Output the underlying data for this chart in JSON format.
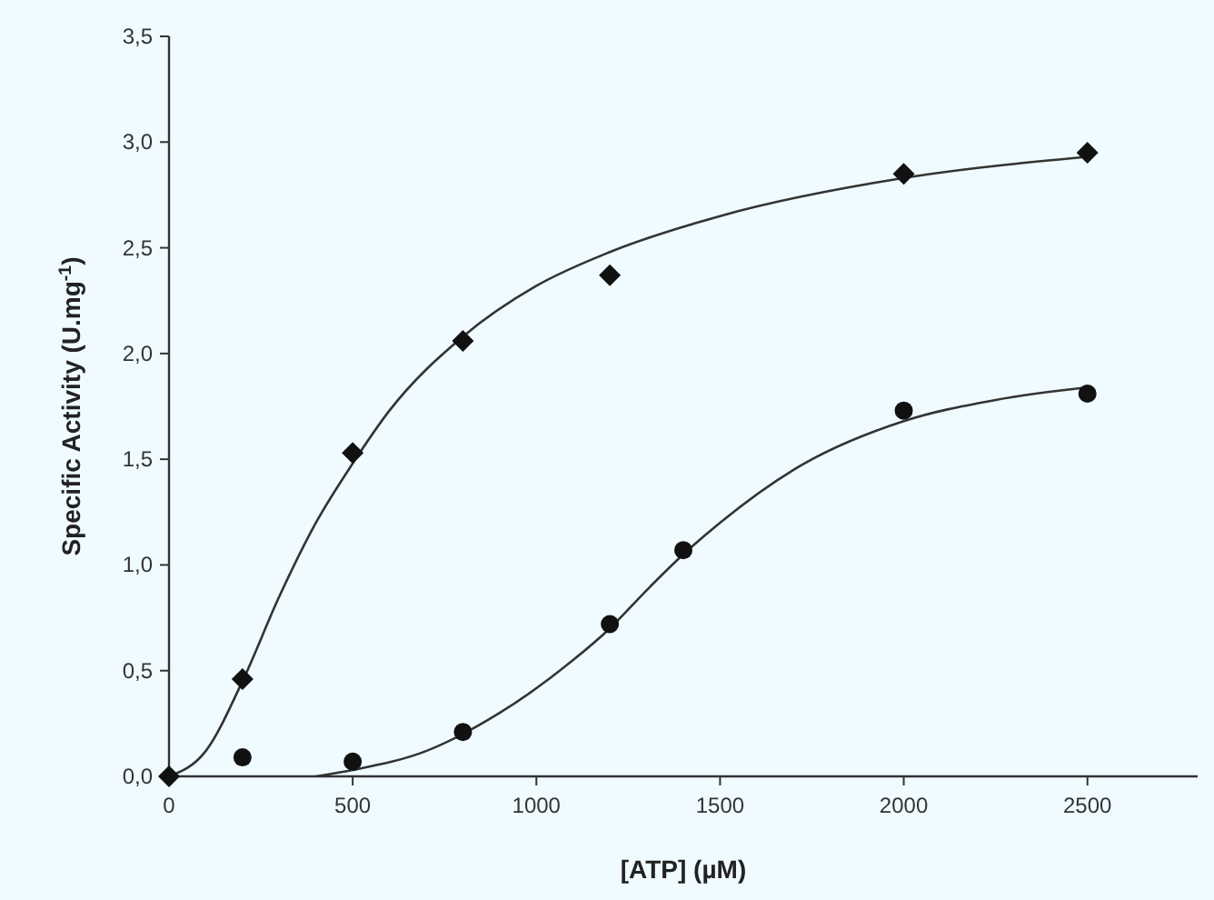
{
  "chart_data": {
    "type": "scatter",
    "xlabel": "[ATP] (µM)",
    "ylabel": "Specific Activity (U.mg$^{-1}$)",
    "xlim": [
      0,
      2800
    ],
    "xticks": [
      0,
      500,
      1000,
      1500,
      2000,
      2500
    ],
    "ylim": [
      0,
      3.5
    ],
    "yticks": [
      {
        "value": 0,
        "label": "0,0"
      },
      {
        "value": 0.5,
        "label": "0,5"
      },
      {
        "value": 1,
        "label": "1,0"
      },
      {
        "value": 1.5,
        "label": "1,5"
      },
      {
        "value": 2,
        "label": "2,0"
      },
      {
        "value": 2.5,
        "label": "2,5"
      },
      {
        "value": 3,
        "label": "3,0"
      },
      {
        "value": 3.5,
        "label": "3,5"
      }
    ],
    "grid": false,
    "series": [
      {
        "type": "line",
        "color": "#333333",
        "marker": "none",
        "line_style": "solid",
        "x": [
          0,
          100,
          200,
          300,
          400,
          500,
          600,
          800,
          1000,
          1200,
          1500,
          2000,
          2500
        ],
        "values": [
          0,
          0.12,
          0.45,
          0.85,
          1.2,
          1.48,
          1.73,
          2.08,
          2.32,
          2.48,
          2.65,
          2.83,
          2.93
        ]
      },
      {
        "type": "line",
        "color": "#333333",
        "marker": "none",
        "line_style": "solid",
        "x": [
          400,
          500,
          700,
          900,
          1100,
          1200,
          1300,
          1400,
          1500,
          1700,
          2000,
          2250,
          2500
        ],
        "values": [
          0,
          0.03,
          0.12,
          0.3,
          0.55,
          0.7,
          0.88,
          1.05,
          1.2,
          1.45,
          1.68,
          1.78,
          1.84
        ]
      },
      {
        "color": "#111111",
        "marker": "diamond",
        "x": [
          0,
          200,
          500,
          800,
          1200,
          2000,
          2500
        ],
        "values": [
          0,
          0.46,
          1.53,
          2.06,
          2.37,
          2.85,
          2.95
        ]
      },
      {
        "color": "#111111",
        "marker": "circle",
        "x": [
          200,
          500,
          800,
          1200,
          1400,
          2000,
          2500
        ],
        "values": [
          0.09,
          0.07,
          0.21,
          0.72,
          1.07,
          1.73,
          1.81
        ]
      }
    ]
  }
}
